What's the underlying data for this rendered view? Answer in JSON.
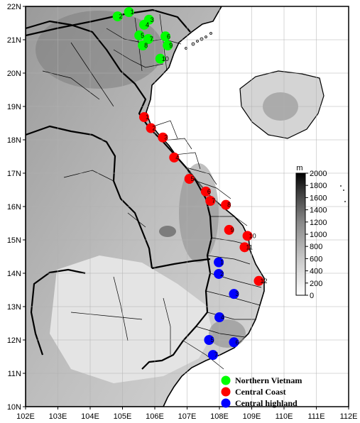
{
  "map": {
    "lon_range": [
      102,
      112
    ],
    "lat_range": [
      10,
      22
    ],
    "x_tick_labels": [
      "102E",
      "103E",
      "104E",
      "105E",
      "106E",
      "107E",
      "108E",
      "109E",
      "110E",
      "111E",
      "112E"
    ],
    "y_tick_labels": [
      "10N",
      "11N",
      "12N",
      "13N",
      "14N",
      "15N",
      "16N",
      "17N",
      "18N",
      "19N",
      "20N",
      "21N",
      "22N"
    ],
    "background_style": "grayscale shaded relief",
    "gridlines": true
  },
  "colorbar": {
    "unit": "m",
    "labels": [
      "0",
      "200",
      "400",
      "600",
      "800",
      "1000",
      "1200",
      "1400",
      "1600",
      "1800",
      "2000"
    ],
    "min": 0,
    "max": 2000
  },
  "legend": {
    "items": [
      {
        "label": "Northern Vietnam",
        "color": "#00ff00"
      },
      {
        "label": "Central Coast",
        "color": "#ff0000"
      },
      {
        "label": "Central highland",
        "color": "#0000ff"
      }
    ]
  },
  "stations": {
    "northern": [
      {
        "id": "1",
        "lon": 105.2,
        "lat": 21.83
      },
      {
        "id": "2",
        "lon": 104.85,
        "lat": 21.7
      },
      {
        "id": "3",
        "lon": 105.82,
        "lat": 21.6
      },
      {
        "id": "4",
        "lon": 105.67,
        "lat": 21.45
      },
      {
        "id": "5",
        "lon": 105.52,
        "lat": 21.13
      },
      {
        "id": "6",
        "lon": 106.33,
        "lat": 21.1
      },
      {
        "id": "7",
        "lon": 105.8,
        "lat": 21.02
      },
      {
        "id": "8",
        "lon": 105.63,
        "lat": 20.83
      },
      {
        "id": "9",
        "lon": 106.4,
        "lat": 20.83
      },
      {
        "id": "10",
        "lon": 106.17,
        "lat": 20.43
      }
    ],
    "central_coast": [
      {
        "id": "1",
        "lon": 105.67,
        "lat": 18.68
      },
      {
        "id": "2",
        "lon": 105.88,
        "lat": 18.35
      },
      {
        "id": "3",
        "lon": 106.25,
        "lat": 18.07
      },
      {
        "id": "4",
        "lon": 106.6,
        "lat": 17.47
      },
      {
        "id": "5",
        "lon": 107.07,
        "lat": 16.83
      },
      {
        "id": "6",
        "lon": 107.58,
        "lat": 16.45
      },
      {
        "id": "7",
        "lon": 107.72,
        "lat": 16.17
      },
      {
        "id": "8",
        "lon": 108.2,
        "lat": 16.05
      },
      {
        "id": "9",
        "lon": 108.3,
        "lat": 15.3
      },
      {
        "id": "10",
        "lon": 108.87,
        "lat": 15.12
      },
      {
        "id": "11",
        "lon": 108.78,
        "lat": 14.78
      },
      {
        "id": "12",
        "lon": 109.22,
        "lat": 13.77
      }
    ],
    "central_highland": [
      {
        "id": "1",
        "lon": 107.98,
        "lat": 14.33
      },
      {
        "id": "2",
        "lon": 107.98,
        "lat": 13.98
      },
      {
        "id": "3",
        "lon": 108.45,
        "lat": 13.38
      },
      {
        "id": "4",
        "lon": 108.0,
        "lat": 12.68
      },
      {
        "id": "5",
        "lon": 107.68,
        "lat": 12.0
      },
      {
        "id": "6",
        "lon": 108.45,
        "lat": 11.93
      },
      {
        "id": "7",
        "lon": 107.8,
        "lat": 11.55
      }
    ]
  }
}
